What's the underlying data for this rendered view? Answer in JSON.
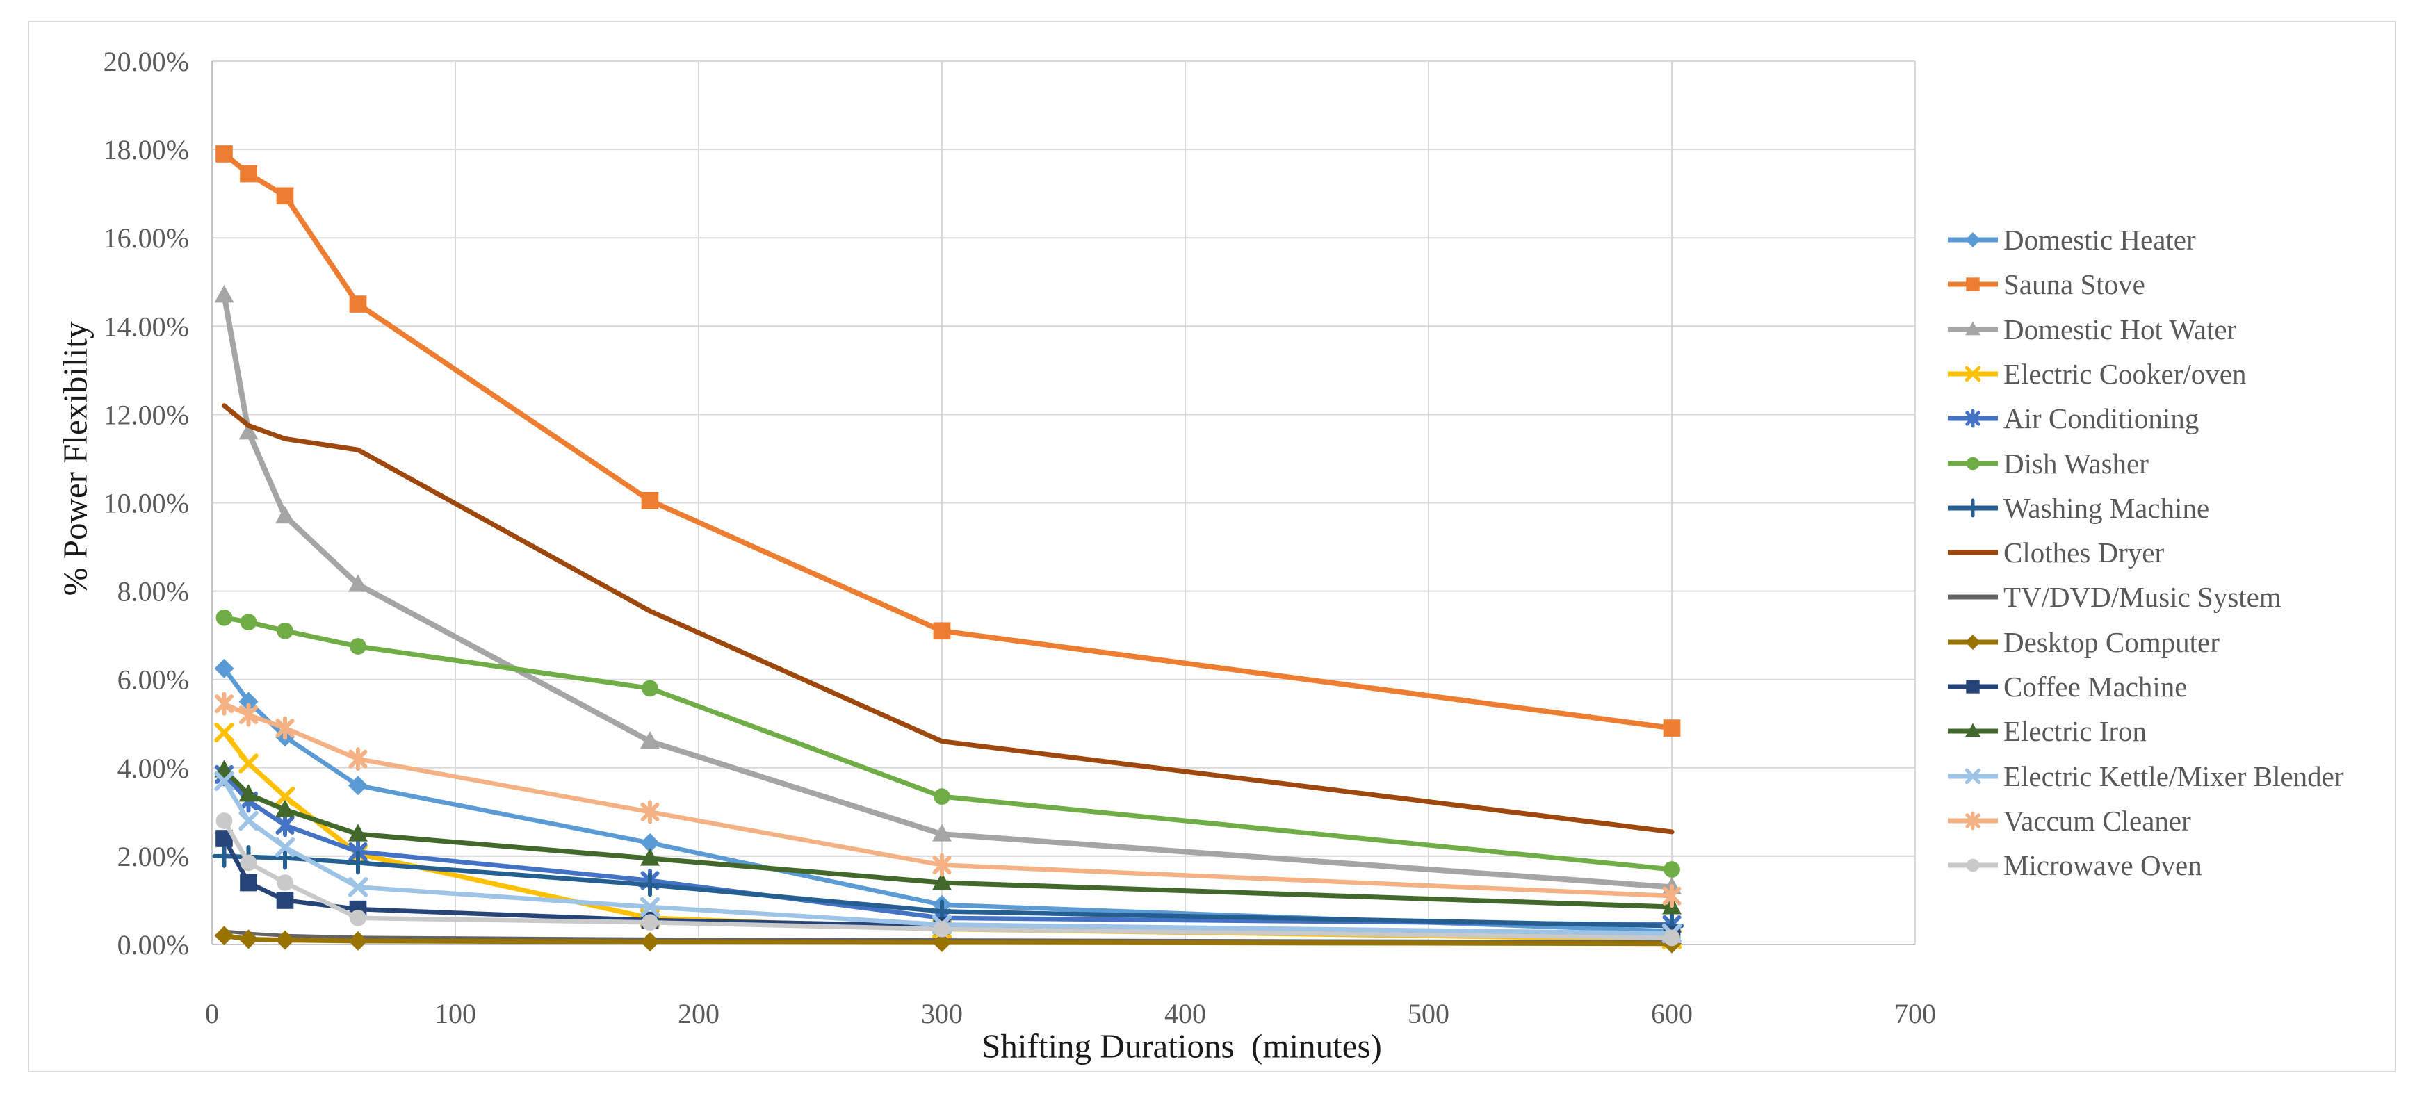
{
  "chart": {
    "y_axis_title": "% Power Flexibility",
    "x_axis_title": "Shifting Durations  (minutes)",
    "y_ticks": [
      "0.00%",
      "2.00%",
      "4.00%",
      "6.00%",
      "8.00%",
      "10.00%",
      "12.00%",
      "14.00%",
      "16.00%",
      "18.00%",
      "20.00%"
    ],
    "x_ticks": [
      "0",
      "100",
      "200",
      "300",
      "400",
      "500",
      "600",
      "700"
    ]
  },
  "chart_data": {
    "type": "line",
    "title": "",
    "xlabel": "Shifting Durations  (minutes)",
    "ylabel": "% Power Flexibility",
    "x": [
      5,
      15,
      30,
      60,
      180,
      300,
      600
    ],
    "xlim": [
      0,
      700
    ],
    "ylim": [
      0,
      20
    ],
    "x_tick_step": 100,
    "y_tick_step": 2,
    "y_unit": "percent",
    "grid": true,
    "legend_position": "right",
    "series": [
      {
        "name": "Domestic Heater",
        "color": "#5B9BD5",
        "marker": "diamond",
        "line_width": 6.5,
        "values": [
          6.25,
          5.5,
          4.7,
          3.6,
          2.3,
          0.9,
          0.3
        ]
      },
      {
        "name": "Sauna Stove",
        "color": "#ED7D31",
        "marker": "square",
        "line_width": 7.5,
        "values": [
          17.9,
          17.45,
          16.95,
          14.5,
          10.05,
          7.1,
          4.9
        ]
      },
      {
        "name": "Domestic Hot Water",
        "color": "#A5A5A5",
        "marker": "triangle",
        "line_width": 8,
        "values": [
          14.7,
          11.6,
          9.7,
          8.15,
          4.6,
          2.5,
          1.3
        ]
      },
      {
        "name": "Electric Cooker/oven",
        "color": "#FFC000",
        "marker": "x",
        "line_width": 7,
        "values": [
          4.8,
          4.1,
          3.35,
          2.05,
          0.6,
          0.35,
          0.12
        ]
      },
      {
        "name": "Air Conditioning",
        "color": "#4472C4",
        "marker": "asterisk",
        "line_width": 6.5,
        "values": [
          3.85,
          3.25,
          2.7,
          2.1,
          1.45,
          0.6,
          0.45
        ]
      },
      {
        "name": "Dish Washer",
        "color": "#70AD47",
        "marker": "circle",
        "line_width": 7,
        "values": [
          7.4,
          7.3,
          7.1,
          6.75,
          5.8,
          3.35,
          1.7
        ]
      },
      {
        "name": "Washing Machine",
        "color": "#255E91",
        "marker": "plus",
        "line_width": 6.5,
        "values": [
          2.0,
          1.98,
          1.96,
          1.85,
          1.35,
          0.75,
          0.42
        ]
      },
      {
        "name": "Clothes Dryer",
        "color": "#9E480E",
        "marker": "none",
        "line_width": 7,
        "values": [
          12.2,
          11.75,
          11.45,
          11.2,
          7.55,
          4.6,
          2.55
        ]
      },
      {
        "name": "TV/DVD/Music System",
        "color": "#636363",
        "marker": "none",
        "line_width": 5,
        "values": [
          0.3,
          0.25,
          0.2,
          0.16,
          0.12,
          0.1,
          0.06
        ]
      },
      {
        "name": "Desktop Computer",
        "color": "#997300",
        "marker": "diamond",
        "line_width": 7,
        "values": [
          0.2,
          0.12,
          0.1,
          0.08,
          0.06,
          0.05,
          0.02
        ]
      },
      {
        "name": "Coffee Machine",
        "color": "#264478",
        "marker": "square",
        "line_width": 6.5,
        "values": [
          2.4,
          1.4,
          1.0,
          0.8,
          0.55,
          0.42,
          0.22
        ]
      },
      {
        "name": "Electric Iron",
        "color": "#43682B",
        "marker": "triangle",
        "line_width": 7,
        "values": [
          3.95,
          3.4,
          3.05,
          2.5,
          1.95,
          1.4,
          0.85
        ]
      },
      {
        "name": "Electric Kettle/Mixer Blender",
        "color": "#9DC3E6",
        "marker": "x",
        "line_width": 6.5,
        "values": [
          3.7,
          2.8,
          2.2,
          1.3,
          0.85,
          0.45,
          0.25
        ]
      },
      {
        "name": "Vaccum Cleaner",
        "color": "#F4B183",
        "marker": "asterisk",
        "line_width": 6.5,
        "values": [
          5.45,
          5.2,
          4.9,
          4.2,
          3.0,
          1.8,
          1.1
        ]
      },
      {
        "name": "Microwave Oven",
        "color": "#C9C9C9",
        "marker": "circle",
        "line_width": 6.5,
        "values": [
          2.8,
          1.85,
          1.4,
          0.6,
          0.5,
          0.35,
          0.15
        ]
      }
    ]
  },
  "colors": {
    "background": "#FFFFFF",
    "frame_border": "#D9D9D9",
    "gridline": "#D9D9D9",
    "axis_line": "#C6C6C6",
    "tick_text": "#595959",
    "legend_text": "#595959",
    "title_text": "#1A1A1A"
  }
}
